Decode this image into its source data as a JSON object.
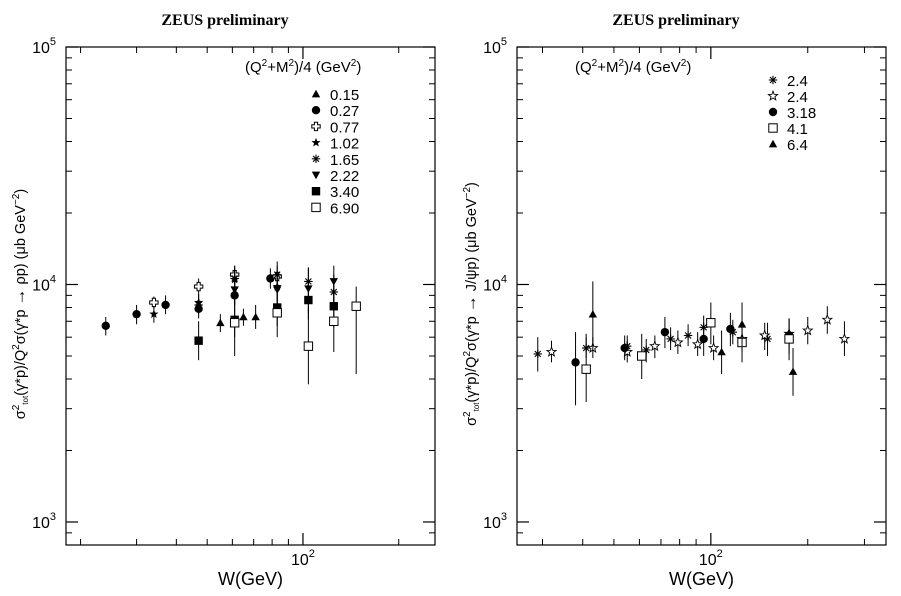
{
  "chart_data": [
    {
      "type": "scatter",
      "title": "ZEUS preliminary",
      "xlabel": "W(GeV)",
      "ylabel": "σ²tot(γ*p)/Q²σ(γ*p → ρp) (μb GeV⁻²)",
      "ylabel_parts": {
        "sigma": "σ",
        "sup2": "2",
        "sub": "tot",
        "mid": "(γ*p)/Q",
        "mid2": "σ(γ*p ",
        "end": " ρp) (μb GeV",
        "exp": "−2",
        "close": ")"
      },
      "xscale": "log",
      "yscale": "log",
      "xlim": [
        18,
        260
      ],
      "ylim": [
        800,
        100000
      ],
      "x_ticks": [
        {
          "value": 100,
          "label": "10",
          "exp": "2"
        }
      ],
      "y_ticks": [
        {
          "value": 1000,
          "label": "10",
          "exp": "3"
        },
        {
          "value": 10000,
          "label": "10",
          "exp": "4"
        },
        {
          "value": 100000,
          "label": "10",
          "exp": "5"
        }
      ],
      "legend_title": "(Q²+M²)/4 (GeV²)",
      "legend_title_parts": {
        "a": "(Q",
        "b": "+M",
        "c": ")/4 (GeV",
        "d": ")"
      },
      "legend_position": "top-right",
      "series": [
        {
          "name": "0.15",
          "marker": "triangle",
          "points": [
            {
              "x": 55,
              "y": 6900,
              "lo": 6300,
              "hi": 7500
            },
            {
              "x": 65,
              "y": 7300,
              "lo": 6700,
              "hi": 7900
            },
            {
              "x": 71,
              "y": 7300,
              "lo": 6500,
              "hi": 8200
            }
          ]
        },
        {
          "name": "0.27",
          "marker": "circle",
          "points": [
            {
              "x": 24,
              "y": 6700,
              "lo": 6100,
              "hi": 7300
            },
            {
              "x": 30,
              "y": 7500,
              "lo": 6800,
              "hi": 8200
            },
            {
              "x": 37,
              "y": 8200,
              "lo": 7500,
              "hi": 9000
            },
            {
              "x": 47,
              "y": 7900,
              "lo": 7200,
              "hi": 8700
            },
            {
              "x": 61,
              "y": 9000,
              "lo": 8200,
              "hi": 9900
            },
            {
              "x": 79,
              "y": 10600,
              "lo": 9600,
              "hi": 11700
            }
          ]
        },
        {
          "name": "0.77",
          "marker": "cross",
          "points": [
            {
              "x": 34,
              "y": 8400,
              "lo": 7900,
              "hi": 8900
            },
            {
              "x": 47,
              "y": 9800,
              "lo": 9000,
              "hi": 10600
            },
            {
              "x": 61,
              "y": 11000,
              "lo": 10000,
              "hi": 12000
            },
            {
              "x": 83,
              "y": 10800,
              "lo": 9600,
              "hi": 12000
            }
          ]
        },
        {
          "name": "1.02",
          "marker": "star5",
          "points": [
            {
              "x": 34,
              "y": 7500,
              "lo": 6900,
              "hi": 8100
            },
            {
              "x": 47,
              "y": 8400,
              "lo": 7700,
              "hi": 9100
            },
            {
              "x": 61,
              "y": 10500,
              "lo": 9300,
              "hi": 11800
            },
            {
              "x": 83,
              "y": 9800,
              "lo": 8500,
              "hi": 11200
            }
          ]
        },
        {
          "name": "1.65",
          "marker": "asterisk",
          "points": [
            {
              "x": 47,
              "y": 8200,
              "lo": 7500,
              "hi": 9000
            },
            {
              "x": 61,
              "y": 10600,
              "lo": 9300,
              "hi": 12000
            },
            {
              "x": 83,
              "y": 11000,
              "lo": 9500,
              "hi": 12500
            },
            {
              "x": 104,
              "y": 10300,
              "lo": 8900,
              "hi": 11800
            },
            {
              "x": 125,
              "y": 9300,
              "lo": 7800,
              "hi": 11000
            }
          ]
        },
        {
          "name": "2.22",
          "marker": "triangle-down",
          "points": [
            {
              "x": 61,
              "y": 9500,
              "lo": 8200,
              "hi": 11000
            },
            {
              "x": 83,
              "y": 9500,
              "lo": 8100,
              "hi": 11000
            },
            {
              "x": 104,
              "y": 9600,
              "lo": 7600,
              "hi": 11800
            },
            {
              "x": 125,
              "y": 10300,
              "lo": 8400,
              "hi": 12000
            }
          ]
        },
        {
          "name": "3.40",
          "marker": "square",
          "points": [
            {
              "x": 47,
              "y": 5800,
              "lo": 4800,
              "hi": 7000
            },
            {
              "x": 61,
              "y": 7100,
              "lo": 6000,
              "hi": 8500
            },
            {
              "x": 83,
              "y": 8000,
              "lo": 6700,
              "hi": 9700
            },
            {
              "x": 104,
              "y": 8600,
              "lo": 7100,
              "hi": 10400
            },
            {
              "x": 125,
              "y": 8100,
              "lo": 6600,
              "hi": 10000
            }
          ]
        },
        {
          "name": "6.90",
          "marker": "open-square",
          "points": [
            {
              "x": 61,
              "y": 6900,
              "lo": 5000,
              "hi": 9500
            },
            {
              "x": 83,
              "y": 7600,
              "lo": 6000,
              "hi": 9600
            },
            {
              "x": 104,
              "y": 5500,
              "lo": 3800,
              "hi": 8000
            },
            {
              "x": 125,
              "y": 7000,
              "lo": 5200,
              "hi": 9400
            },
            {
              "x": 147,
              "y": 8100,
              "lo": 4200,
              "hi": 9800
            }
          ]
        }
      ]
    },
    {
      "type": "scatter",
      "title": "ZEUS preliminary",
      "xlabel": "W(GeV)",
      "ylabel": "σ²tot(γ*p)/Q²σ(γ*p → J/ψp) (μb GeV⁻²)",
      "ylabel_parts": {
        "sigma": "σ",
        "sup2": "2",
        "sub": "tot",
        "mid": "(γ*p)/Q",
        "mid2": "σ(γ*p ",
        "end": " J/ψp) (μb GeV",
        "exp": "−2",
        "close": ")"
      },
      "xscale": "log",
      "yscale": "log",
      "xlim": [
        25,
        350
      ],
      "ylim": [
        800,
        100000
      ],
      "x_ticks": [
        {
          "value": 100,
          "label": "10",
          "exp": "2"
        }
      ],
      "y_ticks": [
        {
          "value": 1000,
          "label": "10",
          "exp": "3"
        },
        {
          "value": 10000,
          "label": "10",
          "exp": "4"
        },
        {
          "value": 100000,
          "label": "10",
          "exp": "5"
        }
      ],
      "legend_title": "(Q²+M²)/4 (GeV²)",
      "legend_title_parts": {
        "a": "(Q",
        "b": "+M",
        "c": ")/4 (GeV",
        "d": ")"
      },
      "legend_position": "top-right",
      "series": [
        {
          "name": "2.4",
          "marker": "asterisk",
          "points": [
            {
              "x": 29,
              "y": 5100,
              "lo": 4300,
              "hi": 6000
            },
            {
              "x": 41,
              "y": 5400,
              "lo": 4900,
              "hi": 6000
            },
            {
              "x": 55,
              "y": 5500,
              "lo": 5000,
              "hi": 6100
            },
            {
              "x": 63,
              "y": 5300,
              "lo": 4700,
              "hi": 5900
            },
            {
              "x": 75,
              "y": 5900,
              "lo": 5300,
              "hi": 6600
            },
            {
              "x": 85,
              "y": 6100,
              "lo": 5500,
              "hi": 6800
            },
            {
              "x": 95,
              "y": 6600,
              "lo": 5900,
              "hi": 7400
            },
            {
              "x": 117,
              "y": 6300,
              "lo": 5600,
              "hi": 7100
            },
            {
              "x": 150,
              "y": 5900,
              "lo": 5000,
              "hi": 6900
            }
          ]
        },
        {
          "name": "2.4",
          "marker": "open-star",
          "points": [
            {
              "x": 32,
              "y": 5200,
              "lo": 4700,
              "hi": 5800
            },
            {
              "x": 43,
              "y": 5400,
              "lo": 4900,
              "hi": 6000
            },
            {
              "x": 55,
              "y": 5200,
              "lo": 4700,
              "hi": 5800
            },
            {
              "x": 67,
              "y": 5500,
              "lo": 4900,
              "hi": 6100
            },
            {
              "x": 79,
              "y": 5700,
              "lo": 5100,
              "hi": 6400
            },
            {
              "x": 91,
              "y": 5600,
              "lo": 5000,
              "hi": 6300
            },
            {
              "x": 102,
              "y": 5400,
              "lo": 4800,
              "hi": 6100
            },
            {
              "x": 125,
              "y": 5900,
              "lo": 5200,
              "hi": 6700
            },
            {
              "x": 147,
              "y": 6100,
              "lo": 5300,
              "hi": 6900
            },
            {
              "x": 175,
              "y": 6200,
              "lo": 5400,
              "hi": 7100
            },
            {
              "x": 200,
              "y": 6400,
              "lo": 5600,
              "hi": 7300
            },
            {
              "x": 230,
              "y": 7100,
              "lo": 6200,
              "hi": 8100
            },
            {
              "x": 260,
              "y": 5900,
              "lo": 5000,
              "hi": 7000
            }
          ]
        },
        {
          "name": "3.18",
          "marker": "circle",
          "points": [
            {
              "x": 38,
              "y": 4700,
              "lo": 3100,
              "hi": 6300
            },
            {
              "x": 54,
              "y": 5400,
              "lo": 4800,
              "hi": 6100
            },
            {
              "x": 72,
              "y": 6300,
              "lo": 5400,
              "hi": 7300
            },
            {
              "x": 95,
              "y": 5900,
              "lo": 5000,
              "hi": 6900
            },
            {
              "x": 115,
              "y": 6500,
              "lo": 5500,
              "hi": 7600
            },
            {
              "x": 175,
              "y": 6100,
              "lo": 5100,
              "hi": 7200
            }
          ]
        },
        {
          "name": "4.1",
          "marker": "open-square",
          "points": [
            {
              "x": 41,
              "y": 4400,
              "lo": 3200,
              "hi": 6200
            },
            {
              "x": 61,
              "y": 5000,
              "lo": 4000,
              "hi": 6200
            },
            {
              "x": 100,
              "y": 6900,
              "lo": 5600,
              "hi": 8400
            },
            {
              "x": 125,
              "y": 5700,
              "lo": 4700,
              "hi": 6900
            },
            {
              "x": 175,
              "y": 5900,
              "lo": 4800,
              "hi": 7200
            }
          ]
        },
        {
          "name": "6.4",
          "marker": "triangle",
          "points": [
            {
              "x": 43,
              "y": 7500,
              "lo": 5300,
              "hi": 10300
            },
            {
              "x": 108,
              "y": 5200,
              "lo": 4200,
              "hi": 6400
            },
            {
              "x": 125,
              "y": 6800,
              "lo": 5500,
              "hi": 8400
            },
            {
              "x": 180,
              "y": 4300,
              "lo": 3400,
              "hi": 5400
            }
          ]
        }
      ]
    }
  ]
}
